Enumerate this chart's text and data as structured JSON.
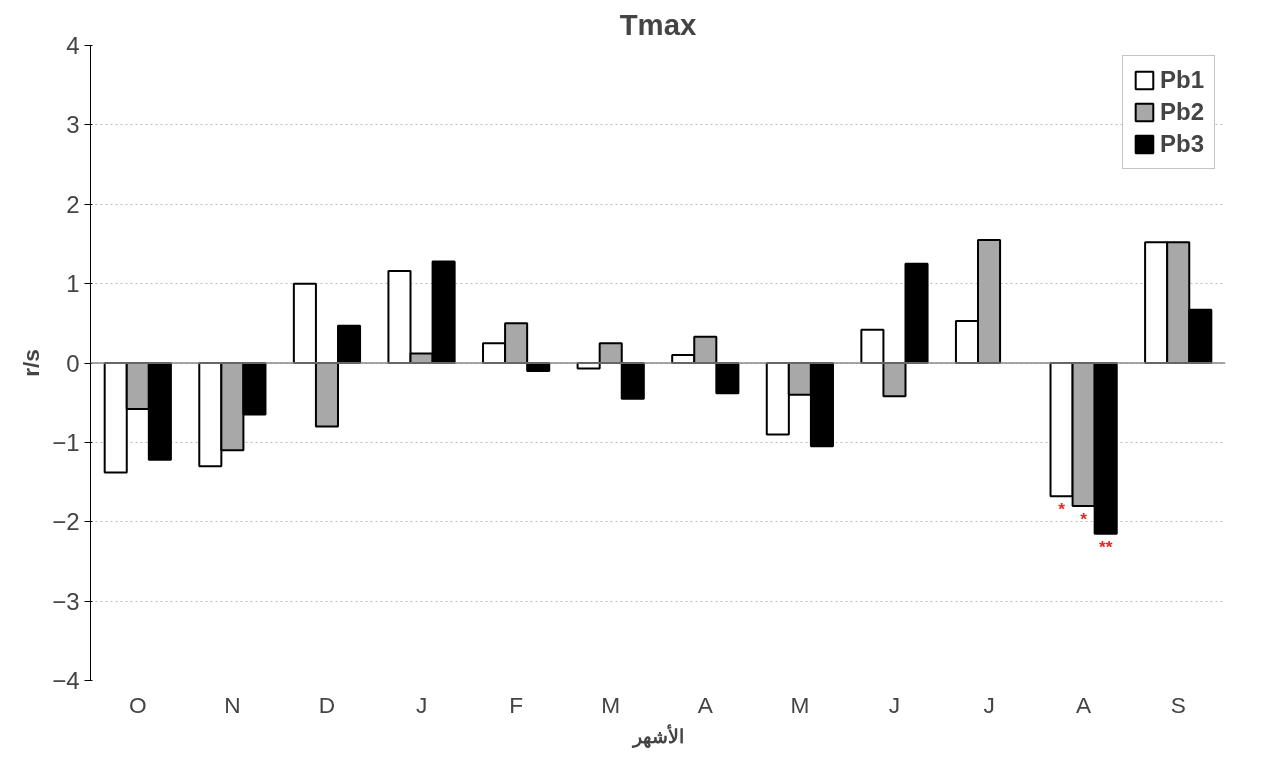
{
  "chart_data": {
    "type": "bar",
    "title": "Tmax",
    "xlabel": "الأشهر",
    "ylabel": "r/s",
    "categories": [
      "O",
      "N",
      "D",
      "J",
      "F",
      "M",
      "A",
      "M",
      "J",
      "J",
      "A",
      "S"
    ],
    "series": [
      {
        "name": "Pb1",
        "color": "#ffffff",
        "values": [
          -1.38,
          -1.3,
          1.0,
          1.16,
          0.25,
          -0.07,
          0.1,
          -0.9,
          0.42,
          0.53,
          -1.68,
          1.52
        ]
      },
      {
        "name": "Pb2",
        "color": "#a8a8a8",
        "values": [
          -0.58,
          -1.1,
          -0.8,
          0.12,
          0.5,
          0.25,
          0.33,
          -0.4,
          -0.42,
          1.55,
          -1.8,
          1.52
        ]
      },
      {
        "name": "Pb3",
        "color": "#000000",
        "values": [
          -1.22,
          -0.65,
          0.47,
          1.28,
          -0.1,
          -0.45,
          -0.38,
          -1.05,
          1.25,
          null,
          -2.15,
          0.67
        ]
      }
    ],
    "ylim": [
      -4,
      4
    ],
    "yticks": [
      -4,
      -3,
      -2,
      -1,
      0,
      1,
      2,
      3,
      4
    ],
    "grid": "y",
    "legend": "top right",
    "annotations": [
      "*",
      "*",
      "**"
    ]
  }
}
